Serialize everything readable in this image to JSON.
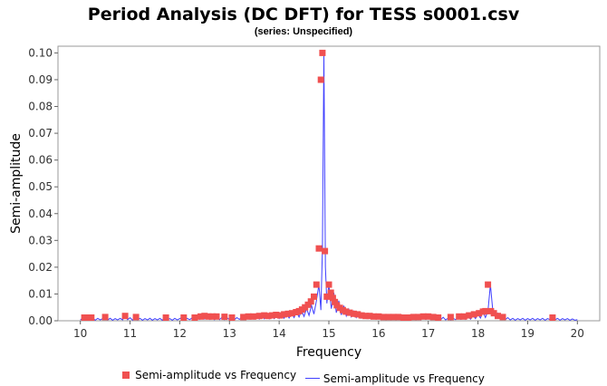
{
  "title": "Period Analysis (DC DFT) for TESS s0001.csv",
  "subtitle": "(series: Unspecified)",
  "chart_data": {
    "type": "line",
    "xlabel": "Frequency",
    "ylabel": "Semi-amplitude",
    "xlim": [
      9.55,
      20.45
    ],
    "ylim": [
      0.0,
      0.1025
    ],
    "x_ticks": [
      "10",
      "11",
      "12",
      "13",
      "14",
      "15",
      "16",
      "17",
      "18",
      "19",
      "20"
    ],
    "y_ticks": [
      "0.00",
      "0.01",
      "0.02",
      "0.03",
      "0.04",
      "0.05",
      "0.06",
      "0.07",
      "0.08",
      "0.09",
      "0.10"
    ],
    "grid": false,
    "legend_position": "bottom",
    "legend": [
      "Semi-amplitude vs Frequency",
      "Semi-amplitude vs Frequency"
    ],
    "colors": {
      "points": "#f05050",
      "line": "#4040ff"
    },
    "series": [
      {
        "name": "Semi-amplitude vs Frequency",
        "kind": "scatter",
        "x": [
          10.08,
          10.14,
          10.22,
          10.5,
          10.9,
          11.12,
          11.72,
          12.08,
          12.3,
          12.42,
          12.5,
          12.58,
          12.66,
          12.74,
          12.9,
          13.05,
          13.28,
          13.38,
          13.48,
          13.6,
          13.7,
          13.78,
          13.86,
          13.94,
          14.02,
          14.1,
          14.18,
          14.26,
          14.34,
          14.4,
          14.46,
          14.52,
          14.58,
          14.64,
          14.7,
          14.75,
          14.8,
          14.84,
          14.87,
          14.92,
          14.96,
          15.0,
          15.04,
          15.08,
          15.12,
          15.16,
          15.22,
          15.28,
          15.34,
          15.42,
          15.5,
          15.58,
          15.66,
          15.74,
          15.82,
          15.9,
          16.0,
          16.1,
          16.2,
          16.3,
          16.4,
          16.5,
          16.6,
          16.7,
          16.8,
          16.9,
          17.0,
          17.1,
          17.2,
          17.45,
          17.62,
          17.72,
          17.82,
          17.92,
          18.02,
          18.1,
          18.15,
          18.2,
          18.26,
          18.32,
          18.4,
          18.5,
          19.5
        ],
        "y": [
          0.0012,
          0.0012,
          0.0012,
          0.0014,
          0.0018,
          0.0014,
          0.0012,
          0.0012,
          0.0012,
          0.0016,
          0.0018,
          0.0016,
          0.0016,
          0.0016,
          0.0015,
          0.0012,
          0.0014,
          0.0016,
          0.0016,
          0.0018,
          0.002,
          0.0018,
          0.002,
          0.0022,
          0.002,
          0.0024,
          0.0026,
          0.0028,
          0.0032,
          0.0036,
          0.0042,
          0.005,
          0.006,
          0.0072,
          0.009,
          0.0135,
          0.027,
          0.09,
          0.1,
          0.026,
          0.009,
          0.0135,
          0.0105,
          0.0085,
          0.007,
          0.0058,
          0.0048,
          0.004,
          0.0034,
          0.003,
          0.0026,
          0.0024,
          0.002,
          0.0018,
          0.0018,
          0.0016,
          0.0016,
          0.0014,
          0.0014,
          0.0014,
          0.0014,
          0.0012,
          0.0012,
          0.0014,
          0.0014,
          0.0016,
          0.0016,
          0.0014,
          0.0012,
          0.0014,
          0.0016,
          0.0016,
          0.002,
          0.0024,
          0.0028,
          0.0034,
          0.0036,
          0.0135,
          0.0036,
          0.0028,
          0.0018,
          0.0014,
          0.0012
        ]
      },
      {
        "name": "Semi-amplitude vs Frequency",
        "kind": "line",
        "x": [
          10.0,
          10.05,
          10.1,
          10.15,
          10.2,
          10.25,
          10.3,
          10.35,
          10.4,
          10.45,
          10.5,
          10.55,
          10.6,
          10.65,
          10.7,
          10.75,
          10.8,
          10.85,
          10.9,
          10.95,
          11.0,
          11.05,
          11.1,
          11.15,
          11.2,
          11.25,
          11.3,
          11.35,
          11.4,
          11.45,
          11.5,
          11.55,
          11.6,
          11.65,
          11.7,
          11.75,
          11.8,
          11.85,
          11.9,
          11.95,
          12.0,
          12.05,
          12.1,
          12.15,
          12.2,
          12.25,
          12.3,
          12.35,
          12.4,
          12.45,
          12.5,
          12.55,
          12.6,
          12.65,
          12.7,
          12.75,
          12.8,
          12.85,
          12.9,
          12.95,
          13.0,
          13.05,
          13.1,
          13.15,
          13.2,
          13.25,
          13.3,
          13.35,
          13.4,
          13.45,
          13.5,
          13.55,
          13.6,
          13.65,
          13.7,
          13.75,
          13.8,
          13.85,
          13.9,
          13.95,
          14.0,
          14.05,
          14.1,
          14.15,
          14.2,
          14.25,
          14.3,
          14.35,
          14.4,
          14.45,
          14.5,
          14.55,
          14.6,
          14.65,
          14.7,
          14.75,
          14.8,
          14.84,
          14.87,
          14.9,
          14.93,
          14.96,
          15.0,
          15.05,
          15.1,
          15.15,
          15.2,
          15.25,
          15.3,
          15.35,
          15.4,
          15.45,
          15.5,
          15.55,
          15.6,
          15.65,
          15.7,
          15.75,
          15.8,
          15.85,
          15.9,
          15.95,
          16.0,
          16.05,
          16.1,
          16.15,
          16.2,
          16.25,
          16.3,
          16.35,
          16.4,
          16.45,
          16.5,
          16.55,
          16.6,
          16.65,
          16.7,
          16.75,
          16.8,
          16.85,
          16.9,
          16.95,
          17.0,
          17.05,
          17.1,
          17.15,
          17.2,
          17.25,
          17.3,
          17.35,
          17.4,
          17.45,
          17.5,
          17.55,
          17.6,
          17.65,
          17.7,
          17.75,
          17.8,
          17.85,
          17.9,
          17.95,
          18.0,
          18.05,
          18.1,
          18.15,
          18.2,
          18.25,
          18.3,
          18.35,
          18.4,
          18.45,
          18.5,
          18.55,
          18.6,
          18.65,
          18.7,
          18.75,
          18.8,
          18.85,
          18.9,
          18.95,
          19.0,
          19.05,
          19.1,
          19.15,
          19.2,
          19.25,
          19.3,
          19.35,
          19.4,
          19.45,
          19.5,
          19.55,
          19.6,
          19.65,
          19.7,
          19.75,
          19.8,
          19.85,
          19.9,
          19.95,
          20.0
        ],
        "y": [
          0.0003,
          0.0011,
          0.0002,
          0.0012,
          0.0003,
          0.001,
          0.0002,
          0.0009,
          0.0003,
          0.0008,
          0.0013,
          0.0003,
          0.0009,
          0.0002,
          0.0008,
          0.0003,
          0.0009,
          0.0003,
          0.0018,
          0.0004,
          0.0011,
          0.0002,
          0.0014,
          0.0003,
          0.0009,
          0.0002,
          0.0008,
          0.0003,
          0.0009,
          0.0002,
          0.0008,
          0.0003,
          0.0009,
          0.0002,
          0.0012,
          0.0003,
          0.0008,
          0.0002,
          0.0009,
          0.0003,
          0.0008,
          0.0012,
          0.0003,
          0.0009,
          0.0004,
          0.0011,
          0.0005,
          0.0016,
          0.0005,
          0.0018,
          0.0006,
          0.0017,
          0.0005,
          0.0016,
          0.0004,
          0.0015,
          0.0004,
          0.0013,
          0.0004,
          0.0012,
          0.0004,
          0.0011,
          0.0004,
          0.0012,
          0.0005,
          0.0014,
          0.0005,
          0.0016,
          0.0006,
          0.0017,
          0.0006,
          0.0018,
          0.0006,
          0.002,
          0.0007,
          0.0019,
          0.0007,
          0.002,
          0.0008,
          0.0022,
          0.0008,
          0.0024,
          0.0009,
          0.0026,
          0.001,
          0.0028,
          0.0012,
          0.0032,
          0.0014,
          0.0038,
          0.0016,
          0.0046,
          0.002,
          0.0058,
          0.0025,
          0.0075,
          0.0135,
          0.004,
          0.027,
          0.1,
          0.02,
          0.0065,
          0.0135,
          0.0045,
          0.0105,
          0.003,
          0.0075,
          0.0022,
          0.0056,
          0.0018,
          0.0044,
          0.0015,
          0.0036,
          0.0012,
          0.003,
          0.001,
          0.0026,
          0.0009,
          0.0022,
          0.0008,
          0.002,
          0.0007,
          0.0018,
          0.0007,
          0.0017,
          0.0006,
          0.0015,
          0.0006,
          0.0014,
          0.0005,
          0.0014,
          0.0005,
          0.0013,
          0.0005,
          0.0012,
          0.0004,
          0.0012,
          0.0004,
          0.0013,
          0.0004,
          0.0014,
          0.0005,
          0.0015,
          0.0005,
          0.0016,
          0.0005,
          0.0015,
          0.0004,
          0.0013,
          0.0003,
          0.001,
          0.0003,
          0.0009,
          0.0004,
          0.0012,
          0.0005,
          0.0015,
          0.0005,
          0.0016,
          0.0006,
          0.002,
          0.0008,
          0.0025,
          0.001,
          0.0032,
          0.0012,
          0.0036,
          0.0135,
          0.0036,
          0.0012,
          0.0028,
          0.0008,
          0.0018,
          0.0004,
          0.0012,
          0.0003,
          0.0009,
          0.0002,
          0.0008,
          0.0003,
          0.0009,
          0.0002,
          0.0008,
          0.0003,
          0.0009,
          0.0002,
          0.0008,
          0.0003,
          0.0009,
          0.0002,
          0.0008,
          0.0004,
          0.0013,
          0.0003,
          0.0009,
          0.0002,
          0.0008,
          0.0003,
          0.0008,
          0.0002,
          0.0007,
          0.0002,
          0.0004
        ]
      }
    ]
  }
}
